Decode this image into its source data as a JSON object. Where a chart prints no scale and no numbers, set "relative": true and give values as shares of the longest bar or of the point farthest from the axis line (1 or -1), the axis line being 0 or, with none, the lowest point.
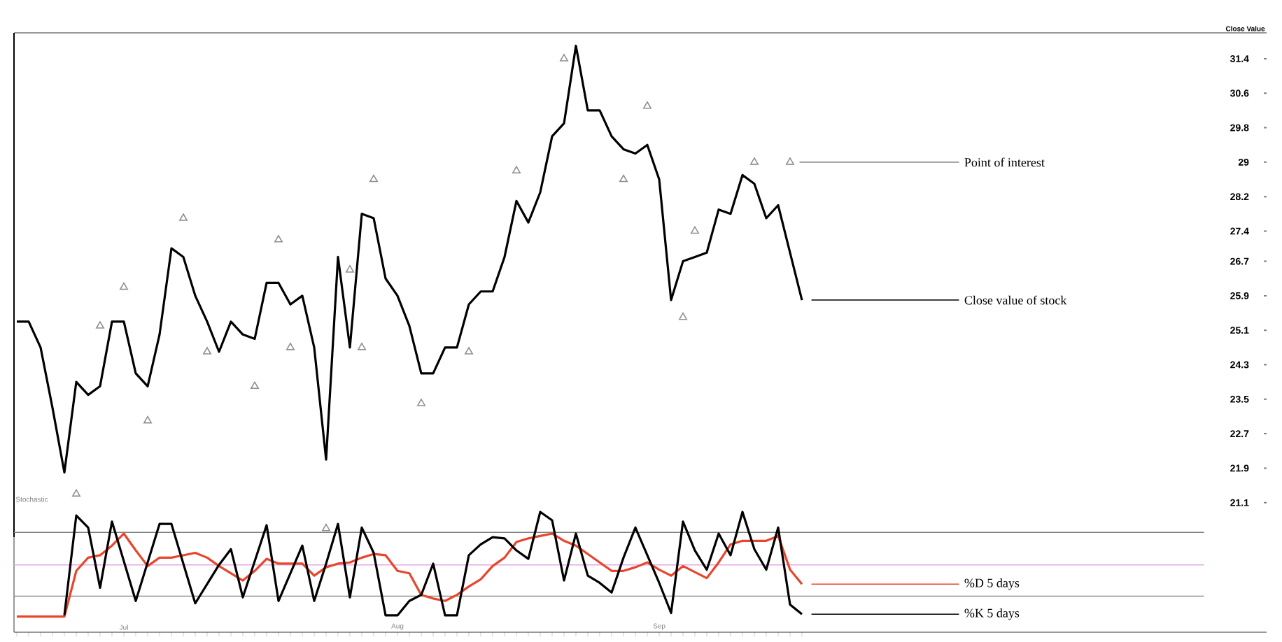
{
  "chart_data": [
    {
      "type": "line",
      "ylabel": "Close Value",
      "categories": [
        null,
        null,
        null,
        null,
        null,
        null,
        null,
        null,
        null,
        null,
        null,
        null,
        null,
        null,
        null,
        null,
        null,
        null,
        null,
        null,
        null,
        null,
        null,
        null,
        null,
        null,
        null,
        null,
        null,
        null,
        null,
        null,
        null,
        null,
        null,
        null,
        null,
        null,
        null,
        null,
        null,
        null,
        null,
        null,
        null,
        null,
        null,
        null,
        null,
        null,
        null,
        null,
        null,
        null,
        null,
        null,
        null,
        null,
        null,
        null,
        null,
        null,
        null,
        null,
        null,
        null,
        null
      ],
      "ylim": [
        20.3,
        32.0
      ],
      "yticks": [
        31.4,
        30.6,
        29.8,
        29,
        28.2,
        27.4,
        26.7,
        25.9,
        25.1,
        24.3,
        23.5,
        22.7,
        21.9,
        21.1
      ],
      "tick_labels": "y",
      "series": [
        {
          "name": "Close value of stock",
          "color": "#000000",
          "values": [
            25.3,
            25.3,
            24.7,
            23.3,
            21.8,
            23.9,
            23.6,
            23.8,
            25.3,
            25.3,
            24.1,
            23.8,
            25.0,
            27.0,
            26.8,
            25.9,
            25.3,
            24.6,
            25.3,
            25.0,
            24.9,
            26.2,
            26.2,
            25.7,
            25.9,
            24.7,
            22.1,
            26.8,
            24.7,
            27.8,
            27.7,
            26.3,
            25.9,
            25.2,
            24.1,
            24.1,
            24.7,
            24.7,
            25.7,
            26.0,
            26.0,
            26.8,
            28.1,
            27.6,
            28.3,
            29.6,
            29.9,
            31.7,
            30.2,
            30.2,
            29.6,
            29.3,
            29.2,
            29.4,
            28.6,
            25.8,
            26.7,
            26.8,
            26.9,
            27.9,
            27.8,
            28.7,
            28.5,
            27.7,
            28.0,
            26.9,
            25.8
          ]
        },
        {
          "name": "Point of interest",
          "type": "scatter",
          "marker": "triangle",
          "color": "#909090",
          "values": [
            null,
            null,
            null,
            null,
            null,
            21.3,
            null,
            25.2,
            null,
            26.1,
            null,
            23.0,
            null,
            null,
            27.7,
            null,
            24.6,
            null,
            null,
            null,
            23.8,
            null,
            27.2,
            24.7,
            null,
            null,
            20.5,
            null,
            26.5,
            24.7,
            28.6,
            null,
            null,
            null,
            23.4,
            null,
            null,
            null,
            24.6,
            null,
            null,
            null,
            28.8,
            null,
            null,
            null,
            31.4,
            null,
            null,
            null,
            null,
            28.6,
            null,
            30.3,
            null,
            null,
            25.4,
            27.4,
            null,
            null,
            null,
            null,
            29.0,
            null,
            null,
            29.0,
            null
          ]
        }
      ]
    },
    {
      "type": "line",
      "title": "Stochastic",
      "relative": true,
      "categories": [
        null,
        null,
        null,
        null,
        null,
        null,
        null,
        null,
        null,
        "Jul",
        null,
        null,
        null,
        null,
        null,
        null,
        null,
        null,
        null,
        null,
        null,
        null,
        null,
        null,
        null,
        null,
        null,
        null,
        null,
        null,
        null,
        null,
        "Aug",
        null,
        null,
        null,
        null,
        null,
        null,
        null,
        null,
        null,
        null,
        null,
        null,
        null,
        null,
        null,
        null,
        null,
        null,
        null,
        null,
        null,
        "Sep",
        null,
        null,
        null,
        null,
        null,
        null,
        null,
        null,
        null,
        null,
        null,
        null
      ],
      "tick_labels": "x",
      "ref_lines": [
        {
          "axis": "y",
          "value": 0.83,
          "color": "#808080"
        },
        {
          "axis": "y",
          "value": 0.56,
          "color": "#e6a8e6"
        },
        {
          "axis": "y",
          "value": 0.3,
          "color": "#808080"
        }
      ],
      "series": [
        {
          "name": "%D 5 days",
          "color": "#e8452c",
          "values": [
            0.13,
            0.13,
            0.13,
            0.13,
            0.13,
            0.51,
            0.62,
            0.64,
            0.72,
            0.82,
            0.68,
            0.55,
            0.62,
            0.62,
            0.64,
            0.66,
            0.62,
            0.55,
            0.49,
            0.43,
            0.51,
            0.61,
            0.57,
            0.57,
            0.57,
            0.47,
            0.54,
            0.57,
            0.58,
            0.62,
            0.65,
            0.64,
            0.51,
            0.49,
            0.31,
            0.28,
            0.26,
            0.31,
            0.38,
            0.44,
            0.55,
            0.62,
            0.75,
            0.78,
            0.8,
            0.82,
            0.76,
            0.72,
            0.65,
            0.58,
            0.51,
            0.51,
            0.54,
            0.58,
            0.52,
            0.47,
            0.55,
            0.5,
            0.45,
            0.58,
            0.73,
            0.76,
            0.76,
            0.76,
            0.8,
            0.52,
            0.4
          ]
        },
        {
          "name": "%K 5 days",
          "color": "#000000",
          "values": [
            null,
            null,
            null,
            null,
            0.14,
            0.97,
            0.87,
            0.37,
            0.92,
            0.59,
            0.26,
            0.58,
            0.9,
            0.9,
            0.57,
            0.24,
            0.4,
            0.56,
            0.69,
            0.29,
            0.59,
            0.89,
            0.26,
            0.49,
            0.72,
            0.26,
            0.57,
            0.9,
            0.29,
            0.87,
            0.66,
            0.14,
            0.14,
            0.26,
            0.31,
            0.57,
            0.14,
            0.14,
            0.64,
            0.73,
            0.79,
            0.78,
            0.68,
            0.61,
            1.0,
            0.93,
            0.43,
            0.82,
            0.47,
            0.41,
            0.33,
            0.62,
            0.87,
            0.64,
            0.41,
            0.16,
            0.92,
            0.68,
            0.52,
            0.82,
            0.64,
            1.0,
            0.69,
            0.52,
            0.87,
            0.23,
            0.15
          ]
        }
      ]
    }
  ]
}
